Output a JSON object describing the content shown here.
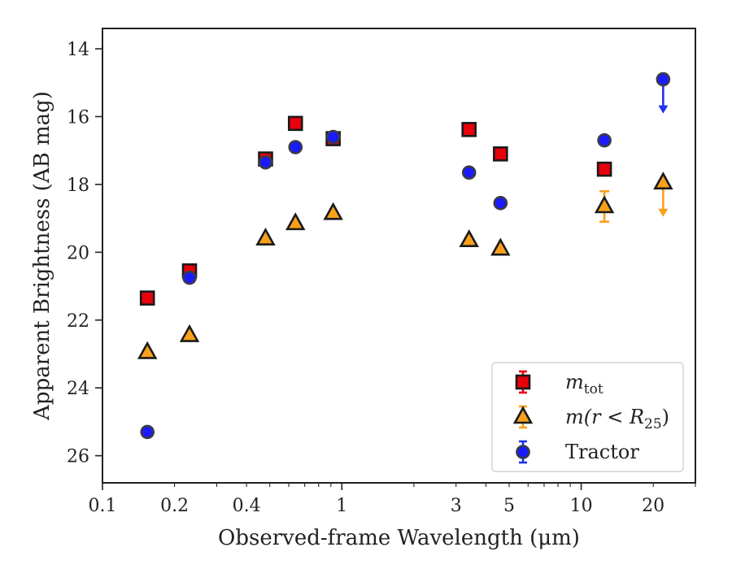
{
  "chart_data": {
    "type": "scatter",
    "xlabel": "Observed-frame Wavelength (μm)",
    "ylabel": "Apparent Brightness (AB mag)",
    "xscale": "log",
    "xlim": [
      0.1,
      30
    ],
    "ylim": [
      26.8,
      13.4
    ],
    "y_inverted": true,
    "grid": false,
    "x_ticks": [
      {
        "value": 0.1,
        "label": "0.1"
      },
      {
        "value": 0.2,
        "label": "0.2"
      },
      {
        "value": 0.4,
        "label": "0.4"
      },
      {
        "value": 1,
        "label": "1"
      },
      {
        "value": 3,
        "label": "3"
      },
      {
        "value": 5,
        "label": "5"
      },
      {
        "value": 10,
        "label": "10"
      },
      {
        "value": 20,
        "label": "20"
      }
    ],
    "y_ticks": [
      {
        "value": 14,
        "label": "14"
      },
      {
        "value": 16,
        "label": "16"
      },
      {
        "value": 18,
        "label": "18"
      },
      {
        "value": 20,
        "label": "20"
      },
      {
        "value": 22,
        "label": "22"
      },
      {
        "value": 24,
        "label": "24"
      },
      {
        "value": 26,
        "label": "26"
      }
    ],
    "legend": {
      "position": "lower-right",
      "entries": [
        {
          "label_main": "m",
          "label_sub": "tot",
          "marker": "square",
          "fill": "#e8000b",
          "errcolor": "#e8000b"
        },
        {
          "label_main": "m(r < R",
          "label_sub": "25",
          "label_tail": ")",
          "marker": "triangle",
          "fill": "#f9a01b",
          "errcolor": "#f9a01b"
        },
        {
          "label_main": "Tractor",
          "marker": "circle",
          "fill": "#1a1aff",
          "errcolor": "#2233ee"
        }
      ]
    },
    "series": [
      {
        "key": "m_tot",
        "marker": "square",
        "fill": "#e8000b",
        "edge": "#1a1a1a",
        "points": [
          {
            "x": 0.154,
            "y": 21.35
          },
          {
            "x": 0.231,
            "y": 20.55
          },
          {
            "x": 0.48,
            "y": 17.25
          },
          {
            "x": 0.64,
            "y": 16.2
          },
          {
            "x": 0.92,
            "y": 16.65
          },
          {
            "x": 3.4,
            "y": 16.38
          },
          {
            "x": 4.6,
            "y": 17.1
          },
          {
            "x": 12.5,
            "y": 17.55
          }
        ]
      },
      {
        "key": "m_r_R25",
        "marker": "triangle",
        "fill": "#f9a01b",
        "edge": "#1a1a1a",
        "errcolor": "#f9a01b",
        "points": [
          {
            "x": 0.154,
            "y": 22.95
          },
          {
            "x": 0.231,
            "y": 22.45
          },
          {
            "x": 0.48,
            "y": 19.6
          },
          {
            "x": 0.64,
            "y": 19.15
          },
          {
            "x": 0.92,
            "y": 18.85
          },
          {
            "x": 3.4,
            "y": 19.65
          },
          {
            "x": 4.6,
            "y": 19.9
          },
          {
            "x": 12.5,
            "y": 18.65,
            "yerr": 0.45
          },
          {
            "x": 22.0,
            "y": 17.95,
            "upper_limit": true
          }
        ]
      },
      {
        "key": "tractor",
        "marker": "circle",
        "fill": "#1a1aff",
        "edge": "#3a3a4a",
        "errcolor": "#2233ee",
        "points": [
          {
            "x": 0.154,
            "y": 25.3
          },
          {
            "x": 0.231,
            "y": 20.75
          },
          {
            "x": 0.48,
            "y": 17.35
          },
          {
            "x": 0.64,
            "y": 16.9
          },
          {
            "x": 0.92,
            "y": 16.6
          },
          {
            "x": 3.4,
            "y": 17.65
          },
          {
            "x": 4.6,
            "y": 18.55
          },
          {
            "x": 12.5,
            "y": 16.7
          },
          {
            "x": 22.0,
            "y": 14.9,
            "upper_limit": true
          }
        ]
      }
    ]
  }
}
